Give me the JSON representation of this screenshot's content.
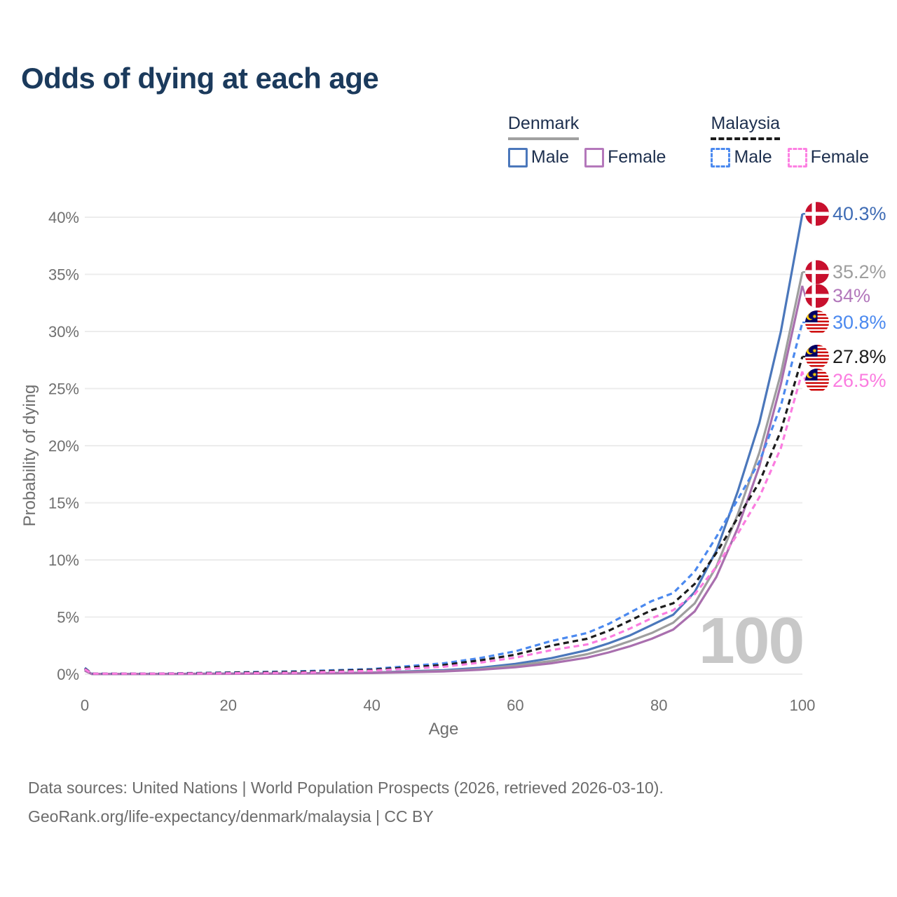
{
  "page": {
    "title": "Odds of dying at each age",
    "watermark": "100",
    "source_line1": "Data sources: United Nations | World Population Prospects (2026, retrieved 2026-03-10).",
    "source_line2": "GeoRank.org/life-expectancy/denmark/malaysia | CC BY"
  },
  "legend": {
    "groups": [
      {
        "label": "Denmark",
        "underline_color": "#a0a0a0",
        "underline_style": "solid",
        "items": [
          {
            "label": "Male",
            "color": "#4b77bb",
            "dash": "solid"
          },
          {
            "label": "Female",
            "color": "#b478bb",
            "dash": "solid"
          }
        ]
      },
      {
        "label": "Malaysia",
        "underline_color": "#1c1c1c",
        "underline_style": "dashed",
        "items": [
          {
            "label": "Male",
            "color": "#4b89ef",
            "dash": "dashed"
          },
          {
            "label": "Female",
            "color": "#fd80e2",
            "dash": "dashed"
          }
        ]
      }
    ]
  },
  "chart_data": {
    "type": "line",
    "title": "Odds of dying at each age",
    "xlabel": "Age",
    "ylabel": "Probability of dying",
    "xlim": [
      0,
      100
    ],
    "ylim": [
      0,
      40
    ],
    "x_ticks": [
      0,
      20,
      40,
      60,
      80,
      100
    ],
    "y_ticks": [
      {
        "value": 0,
        "label": "0%"
      },
      {
        "value": 5,
        "label": "5%"
      },
      {
        "value": 10,
        "label": "10%"
      },
      {
        "value": 15,
        "label": "15%"
      },
      {
        "value": 20,
        "label": "20%"
      },
      {
        "value": 25,
        "label": "25%"
      },
      {
        "value": 30,
        "label": "30%"
      },
      {
        "value": 35,
        "label": "35%"
      },
      {
        "value": 40,
        "label": "40%"
      }
    ],
    "grid": "horizontal",
    "legend_position": "top-right",
    "ages": [
      0,
      1,
      10,
      20,
      30,
      40,
      50,
      55,
      60,
      65,
      70,
      73,
      76,
      79,
      82,
      85,
      88,
      91,
      94,
      97,
      100
    ],
    "series": [
      {
        "id": "denmark-male",
        "country": "Denmark",
        "sex": "Male",
        "style": "solid",
        "color": "#4b77bb",
        "label_color": "#3f6cb5",
        "end_label": "40.3%",
        "end_value": 40.3,
        "values": [
          0.4,
          0.01,
          0.01,
          0.05,
          0.07,
          0.14,
          0.35,
          0.55,
          0.9,
          1.4,
          2.1,
          2.7,
          3.4,
          4.3,
          5.2,
          7.2,
          10.8,
          16.0,
          22.0,
          30.0,
          40.3
        ]
      },
      {
        "id": "denmark-all",
        "country": "Denmark",
        "sex": "All",
        "style": "solid",
        "color": "#9e9e9e",
        "label_color": "#9e9e9e",
        "end_label": "35.2%",
        "end_value": 35.2,
        "values": [
          0.35,
          0.01,
          0.01,
          0.04,
          0.06,
          0.12,
          0.28,
          0.45,
          0.75,
          1.15,
          1.75,
          2.25,
          2.9,
          3.6,
          4.5,
          6.2,
          9.4,
          14.0,
          19.4,
          26.3,
          35.2
        ]
      },
      {
        "id": "denmark-female",
        "country": "Denmark",
        "sex": "Female",
        "style": "solid",
        "color": "#a96fae",
        "label_color": "#b277bb",
        "end_label": "34%",
        "end_value": 34,
        "values": [
          0.3,
          0.01,
          0.01,
          0.03,
          0.05,
          0.1,
          0.24,
          0.38,
          0.6,
          0.95,
          1.45,
          1.9,
          2.45,
          3.1,
          3.9,
          5.5,
          8.5,
          12.8,
          18.2,
          25.4,
          34.0
        ]
      },
      {
        "id": "malaysia-male",
        "country": "Malaysia",
        "sex": "Male",
        "style": "dashed",
        "color": "#4b89ef",
        "label_color": "#4b89ef",
        "end_label": "30.8%",
        "end_value": 30.8,
        "values": [
          0.55,
          0.05,
          0.05,
          0.15,
          0.25,
          0.45,
          0.95,
          1.4,
          2.0,
          2.9,
          3.6,
          4.4,
          5.4,
          6.4,
          7.1,
          9.0,
          12.0,
          15.3,
          18.6,
          23.5,
          30.8
        ]
      },
      {
        "id": "malaysia-all",
        "country": "Malaysia",
        "sex": "All",
        "style": "dashed",
        "color": "#1c1c1c",
        "label_color": "#1c1c1c",
        "end_label": "27.8%",
        "end_value": 27.8,
        "values": [
          0.5,
          0.045,
          0.045,
          0.12,
          0.2,
          0.38,
          0.8,
          1.2,
          1.7,
          2.5,
          3.1,
          3.8,
          4.7,
          5.6,
          6.2,
          7.9,
          10.6,
          13.7,
          16.8,
          21.3,
          27.8
        ]
      },
      {
        "id": "malaysia-female",
        "country": "Malaysia",
        "sex": "Female",
        "style": "dashed",
        "color": "#fb7ce0",
        "label_color": "#fb7ce0",
        "end_label": "26.5%",
        "end_value": 26.5,
        "values": [
          0.45,
          0.04,
          0.04,
          0.08,
          0.13,
          0.3,
          0.65,
          1.0,
          1.45,
          2.1,
          2.6,
          3.2,
          4.0,
          4.9,
          5.6,
          7.0,
          9.4,
          12.3,
          15.5,
          19.8,
          26.5
        ]
      }
    ]
  }
}
